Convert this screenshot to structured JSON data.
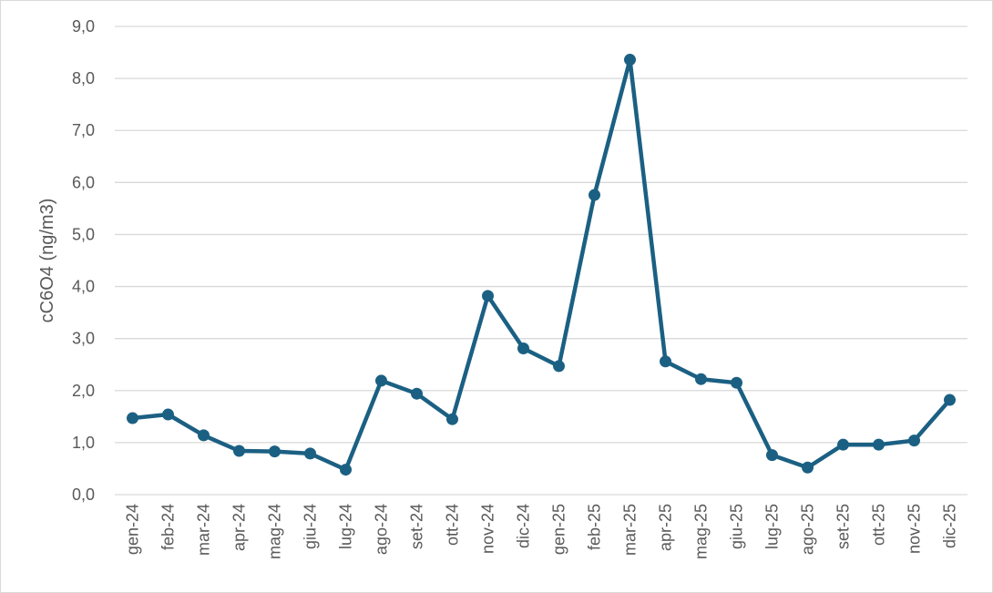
{
  "chart_data": {
    "type": "line",
    "title": "",
    "xlabel": "",
    "ylabel": "cC6O4 (ng/m3)",
    "ylim": [
      0,
      9
    ],
    "y_ticks": [
      "0,0",
      "1,0",
      "2,0",
      "3,0",
      "4,0",
      "5,0",
      "6,0",
      "7,0",
      "8,0",
      "9,0"
    ],
    "grid": "horizontal",
    "legend": "none",
    "categories": [
      "gen-24",
      "feb-24",
      "mar-24",
      "apr-24",
      "mag-24",
      "giu-24",
      "lug-24",
      "ago-24",
      "set-24",
      "ott-24",
      "nov-24",
      "dic-24",
      "gen-25",
      "feb-25",
      "mar-25",
      "apr-25",
      "mag-25",
      "giu-25",
      "lug-25",
      "ago-25",
      "set-25",
      "ott-25",
      "nov-25",
      "dic-25"
    ],
    "series": [
      {
        "values": [
          1.47,
          1.54,
          1.14,
          0.84,
          0.83,
          0.79,
          0.48,
          2.19,
          1.94,
          1.45,
          3.82,
          2.81,
          2.47,
          5.76,
          8.36,
          2.56,
          2.22,
          2.15,
          0.76,
          0.52,
          0.96,
          0.96,
          1.04,
          1.82
        ],
        "color": "#1b6083"
      }
    ],
    "colors": {
      "line": "#1b6083",
      "grid": "#d9d9d9",
      "text": "#595959"
    }
  }
}
